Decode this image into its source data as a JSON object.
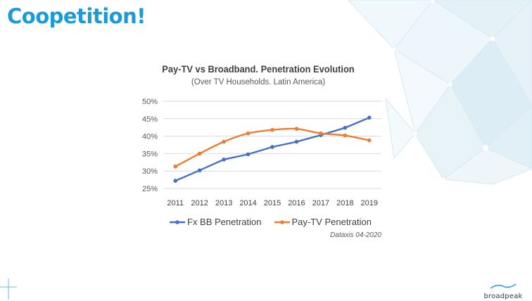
{
  "slide": {
    "title": "Coopetition!"
  },
  "source_note": "Dataxis 04-2020",
  "logo": {
    "text": "broadpeak"
  },
  "colors": {
    "title": "#1a9ad6",
    "series_bb": "#4472c4",
    "series_paytv": "#ed7d31",
    "grid": "#d9d9d9",
    "text": "#404040"
  },
  "chart_data": {
    "type": "line",
    "title": "Pay-TV vs Broadband. Penetration Evolution",
    "subtitle": "(Over TV Households. Latin America)",
    "xlabel": "",
    "ylabel": "",
    "x": [
      "2011",
      "2012",
      "2013",
      "2014",
      "2015",
      "2016",
      "2017",
      "2018",
      "2019"
    ],
    "ylim": [
      25,
      50
    ],
    "yticks": [
      25,
      30,
      35,
      40,
      45,
      50
    ],
    "ytick_labels": [
      "25%",
      "30%",
      "35%",
      "40%",
      "45%",
      "50%"
    ],
    "grid": true,
    "legend_position": "bottom",
    "series": [
      {
        "name": "Fx BB Penetration",
        "color": "#4472c4",
        "smooth": false,
        "values": [
          27.2,
          30.2,
          33.3,
          34.8,
          36.9,
          38.4,
          40.3,
          42.4,
          45.3
        ]
      },
      {
        "name": "Pay-TV Penetration",
        "color": "#ed7d31",
        "smooth": true,
        "values": [
          31.3,
          35.0,
          38.4,
          40.8,
          41.8,
          42.1,
          40.8,
          40.2,
          38.8
        ]
      }
    ]
  }
}
